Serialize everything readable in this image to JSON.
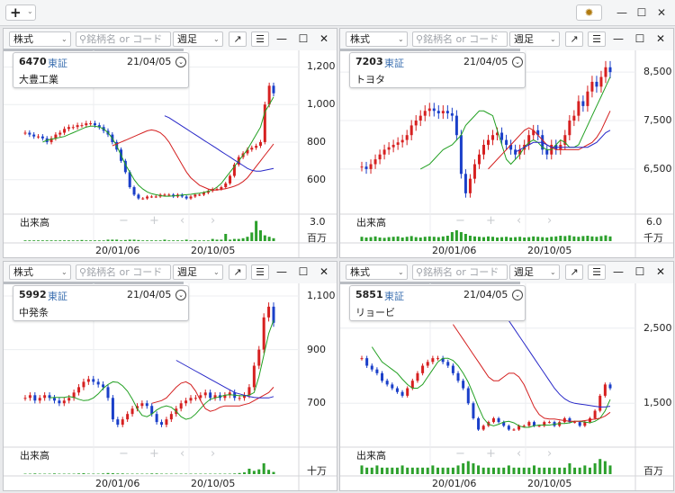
{
  "toolbar": {
    "add_symbol": "+",
    "add_caret": "⌄",
    "gear_icon": "gear-icon",
    "min_label": "—",
    "max_label": "☐",
    "close_label": "✕"
  },
  "panels": [
    {
      "market": "株式",
      "search_placeholder": "銘柄名 or コード",
      "period": "週足",
      "code": "6470",
      "exchange": "東証",
      "date": "21/04/05",
      "name": "大豊工業",
      "volume_label": "出来高",
      "volume_top": "3.0",
      "volume_unit": "百万",
      "y_ticks": [
        "1,200",
        "1,000",
        "800",
        "600"
      ],
      "x_ticks": [
        "20/01/06",
        "20/10/05"
      ],
      "chart_data": {
        "type": "candlestick",
        "price_ticks": [
          1200,
          1000,
          800,
          600
        ],
        "price_range": [
          450,
          1250
        ],
        "volume_range": [
          0,
          3.0
        ],
        "close": [
          850,
          840,
          830,
          830,
          820,
          800,
          820,
          840,
          850,
          870,
          880,
          880,
          890,
          890,
          900,
          900,
          890,
          880,
          860,
          840,
          800,
          760,
          700,
          640,
          560,
          520,
          500,
          500,
          510,
          510,
          510,
          520,
          520,
          520,
          510,
          520,
          510,
          500,
          510,
          520,
          520,
          530,
          540,
          550,
          550,
          560,
          580,
          620,
          680,
          720,
          740,
          760,
          770,
          780,
          800,
          1000,
          1100,
          1060
        ],
        "ma_short": [
          800,
          810,
          815,
          820,
          825,
          830,
          840,
          850,
          860,
          870,
          880,
          885,
          885,
          880,
          870,
          850,
          820,
          780,
          730,
          680,
          640,
          600,
          570,
          550,
          535,
          525,
          520,
          515,
          512,
          512,
          513,
          515,
          518,
          520,
          522,
          525,
          528,
          532,
          538,
          545,
          560,
          580,
          610,
          640,
          670,
          700,
          730,
          760,
          800,
          840,
          880,
          960,
          1000,
          1040
        ],
        "ma_mid": [
          780,
          790,
          800,
          810,
          820,
          830,
          840,
          850,
          860,
          865,
          860,
          850,
          830,
          800,
          760,
          720,
          680,
          640,
          610,
          590,
          570,
          560,
          550,
          545,
          545,
          548,
          552,
          558,
          565,
          575,
          590,
          610,
          640,
          670,
          700,
          730,
          760,
          790
        ],
        "ma_long": [
          940,
          930,
          915,
          900,
          885,
          870,
          855,
          840,
          825,
          810,
          795,
          780,
          765,
          750,
          735,
          720,
          705,
          690,
          675,
          660,
          650,
          645,
          645,
          650,
          655,
          660
        ],
        "volume": [
          0.1,
          0.1,
          0.1,
          0.1,
          0.1,
          0.1,
          0.1,
          0.1,
          0.1,
          0.1,
          0.1,
          0.1,
          0.1,
          0.15,
          0.1,
          0.1,
          0.1,
          0.1,
          0.1,
          0.2,
          0.2,
          0.2,
          0.1,
          0.15,
          0.2,
          0.2,
          0.15,
          0.1,
          0.1,
          0.1,
          0.1,
          0.1,
          0.2,
          0.1,
          0.1,
          0.1,
          0.1,
          0.2,
          0.1,
          0.15,
          0.1,
          0.1,
          0.1,
          0.3,
          0.2,
          0.2,
          1.0,
          0.2,
          0.3,
          0.3,
          0.4,
          0.6,
          1.2,
          2.8,
          1.5,
          0.8,
          0.6,
          0.4
        ]
      }
    },
    {
      "market": "株式",
      "search_placeholder": "銘柄名 or コード",
      "period": "週足",
      "code": "7203",
      "exchange": "東証",
      "date": "21/04/05",
      "name": "トヨタ",
      "volume_label": "出来高",
      "volume_top": "6.0",
      "volume_unit": "千万",
      "y_ticks": [
        "8,500",
        "7,500",
        "6,500"
      ],
      "x_ticks": [
        "20/01/06",
        "20/10/05"
      ],
      "chart_data": {
        "type": "candlestick",
        "price_ticks": [
          8500,
          7500,
          6500
        ],
        "price_range": [
          5700,
          8800
        ],
        "volume_range": [
          0,
          6.0
        ],
        "close": [
          6550,
          6500,
          6600,
          6700,
          6800,
          6900,
          6950,
          7000,
          7050,
          7100,
          7200,
          7400,
          7500,
          7600,
          7700,
          7750,
          7700,
          7650,
          7700,
          7650,
          7600,
          7200,
          6400,
          6000,
          6300,
          6600,
          6800,
          7000,
          7100,
          7200,
          7250,
          7100,
          7000,
          6900,
          6800,
          6900,
          7000,
          7200,
          7300,
          7200,
          6900,
          6800,
          7000,
          6900,
          7000,
          7200,
          7500,
          7600,
          7900,
          7800,
          8100,
          8300,
          8200,
          8400,
          8600,
          8500
        ],
        "ma_short": [
          6500,
          6550,
          6600,
          6700,
          6800,
          6900,
          6950,
          7000,
          7100,
          7200,
          7400,
          7500,
          7600,
          7700,
          7700,
          7650,
          7600,
          7300,
          7000,
          6700,
          6600,
          6700,
          6800,
          6950,
          7050,
          7100,
          7050,
          6950,
          6900,
          6900,
          7000,
          7100,
          7050,
          6950,
          6950,
          7000,
          7200,
          7400,
          7600,
          7800,
          8000,
          8200,
          8400
        ],
        "ma_mid": [
          6500,
          6600,
          6700,
          6800,
          6900,
          7000,
          7100,
          7200,
          7300,
          7350,
          7300,
          7200,
          7100,
          7000,
          6950,
          6900,
          6900,
          6900,
          6900,
          6900,
          6900,
          6950,
          7000,
          7050,
          7150,
          7300,
          7500,
          7700
        ],
        "ma_long": [
          6850,
          6900,
          6950,
          7000,
          7050,
          7050,
          7050,
          7000,
          6950,
          6950,
          6950,
          6950,
          6950,
          6950,
          6950,
          6950,
          6950,
          7000,
          7050,
          7150,
          7250,
          7300
        ],
        "volume": [
          1.2,
          1.0,
          1.1,
          1.3,
          1.0,
          0.9,
          1.1,
          1.2,
          1.3,
          1.0,
          1.2,
          1.4,
          1.1,
          1.0,
          1.2,
          1.3,
          1.2,
          1.1,
          1.3,
          1.5,
          2.5,
          3.0,
          2.5,
          2.0,
          1.5,
          1.3,
          1.2,
          1.1,
          1.3,
          1.2,
          1.0,
          1.1,
          1.2,
          1.0,
          1.1,
          1.2,
          1.0,
          1.1,
          1.3,
          1.2,
          1.1,
          1.0,
          1.2,
          1.3,
          1.5,
          1.4,
          1.6,
          1.3,
          1.2,
          1.4,
          1.5,
          1.3,
          1.2,
          1.4,
          1.6,
          1.3
        ]
      }
    },
    {
      "market": "株式",
      "search_placeholder": "銘柄名 or コード",
      "period": "週足",
      "code": "5992",
      "exchange": "東証",
      "date": "21/04/05",
      "name": "中発条",
      "volume_label": "出来高",
      "volume_top": "",
      "volume_unit": "十万",
      "y_ticks": [
        "1,100",
        "900",
        "700"
      ],
      "x_ticks": [
        "20/01/06",
        "20/10/05"
      ],
      "chart_data": {
        "type": "candlestick",
        "price_ticks": [
          1100,
          900,
          700
        ],
        "price_range": [
          560,
          1120
        ],
        "volume_range": [
          0,
          10
        ],
        "close": [
          720,
          730,
          710,
          720,
          730,
          720,
          710,
          700,
          710,
          720,
          740,
          760,
          780,
          790,
          780,
          770,
          760,
          720,
          640,
          620,
          640,
          660,
          680,
          690,
          700,
          690,
          660,
          630,
          620,
          640,
          660,
          680,
          700,
          710,
          720,
          720,
          730,
          740,
          720,
          730,
          720,
          730,
          740,
          720,
          720,
          730,
          760,
          840,
          900,
          1020,
          1060,
          1000
        ],
        "ma_short": [
          720,
          722,
          722,
          722,
          725,
          722,
          715,
          710,
          712,
          720,
          735,
          755,
          770,
          780,
          778,
          765,
          745,
          715,
          680,
          655,
          650,
          660,
          675,
          685,
          690,
          685,
          670,
          650,
          640,
          645,
          660,
          680,
          700,
          715,
          720,
          725,
          730,
          732,
          730,
          728,
          728,
          730,
          740,
          800,
          880,
          960,
          1010
        ],
        "ma_mid": [
          700,
          705,
          710,
          720,
          740,
          760,
          775,
          780,
          770,
          745,
          710,
          680,
          670,
          675,
          685,
          690,
          690,
          690,
          690,
          695,
          700,
          710,
          720,
          730,
          740,
          760
        ],
        "ma_long": [
          860,
          850,
          840,
          830,
          820,
          810,
          800,
          790,
          780,
          770,
          760,
          750,
          740,
          735,
          730,
          725,
          722,
          720,
          720,
          720,
          725
        ],
        "volume": [
          0.2,
          0.2,
          0.3,
          0.2,
          0.2,
          0.2,
          0.3,
          0.2,
          0.2,
          0.2,
          0.2,
          0.3,
          0.4,
          0.2,
          0.2,
          0.2,
          0.3,
          0.5,
          0.4,
          0.3,
          0.3,
          0.2,
          0.2,
          0.2,
          0.2,
          0.2,
          0.3,
          0.3,
          0.2,
          0.2,
          0.2,
          0.2,
          0.2,
          0.2,
          0.2,
          0.2,
          0.2,
          0.2,
          0.2,
          0.2,
          0.2,
          0.2,
          0.2,
          0.3,
          0.5,
          0.8,
          2.5,
          1.5,
          2.2,
          5.0,
          2.0,
          1.0
        ]
      }
    },
    {
      "market": "株式",
      "search_placeholder": "銘柄名 or コード",
      "period": "週足",
      "code": "5851",
      "exchange": "東証",
      "date": "21/04/05",
      "name": "リョービ",
      "volume_label": "出来高",
      "volume_top": "",
      "volume_unit": "百万",
      "y_ticks": [
        "2,500",
        "1,500"
      ],
      "x_ticks": [
        "20/01/06",
        "20/10/05"
      ],
      "chart_data": {
        "type": "candlestick",
        "price_ticks": [
          2500,
          1500
        ],
        "price_range": [
          1000,
          3000
        ],
        "volume_range": [
          0,
          1.0
        ],
        "close": [
          2100,
          2000,
          1950,
          1900,
          1800,
          1750,
          1700,
          1650,
          1600,
          1700,
          1800,
          1900,
          2000,
          2050,
          2100,
          2100,
          2050,
          2000,
          1900,
          1800,
          1700,
          1500,
          1300,
          1150,
          1200,
          1250,
          1300,
          1250,
          1200,
          1150,
          1150,
          1200,
          1200,
          1250,
          1200,
          1200,
          1250,
          1250,
          1200,
          1250,
          1300,
          1250,
          1250,
          1200,
          1250,
          1300,
          1400,
          1600,
          1750,
          1700
        ],
        "ma_short": [
          2250,
          2150,
          2050,
          2000,
          1950,
          1900,
          1820,
          1750,
          1700,
          1700,
          1750,
          1850,
          1950,
          2050,
          2100,
          2100,
          2070,
          2000,
          1900,
          1780,
          1620,
          1450,
          1300,
          1220,
          1200,
          1220,
          1250,
          1260,
          1240,
          1200,
          1180,
          1180,
          1200,
          1210,
          1210,
          1210,
          1220,
          1230,
          1230,
          1240,
          1260,
          1260,
          1250,
          1240,
          1260,
          1300,
          1400,
          1550
        ],
        "ma_mid": [
          2550,
          2450,
          2350,
          2250,
          2150,
          2050,
          1950,
          1850,
          1800,
          1800,
          1850,
          1900,
          1900,
          1850,
          1750,
          1600,
          1450,
          1350,
          1300,
          1290,
          1290,
          1280,
          1270,
          1260,
          1260,
          1260,
          1270,
          1280,
          1290,
          1300,
          1330,
          1380
        ],
        "ma_long": [
          2800,
          2700,
          2600,
          2500,
          2400,
          2300,
          2200,
          2100,
          2000,
          1900,
          1800,
          1700,
          1620,
          1560,
          1520,
          1500,
          1490,
          1480,
          1470,
          1460,
          1450,
          1450,
          1460
        ],
        "volume": [
          0.4,
          0.3,
          0.3,
          0.4,
          0.3,
          0.3,
          0.3,
          0.3,
          0.4,
          0.3,
          0.3,
          0.3,
          0.3,
          0.3,
          0.4,
          0.3,
          0.3,
          0.3,
          0.3,
          0.4,
          0.5,
          0.6,
          0.5,
          0.4,
          0.3,
          0.3,
          0.3,
          0.3,
          0.3,
          0.4,
          0.3,
          0.3,
          0.3,
          0.3,
          0.4,
          0.3,
          0.3,
          0.3,
          0.3,
          0.3,
          0.3,
          0.5,
          0.3,
          0.3,
          0.4,
          0.3,
          0.5,
          0.7,
          0.6,
          0.4
        ]
      }
    }
  ]
}
